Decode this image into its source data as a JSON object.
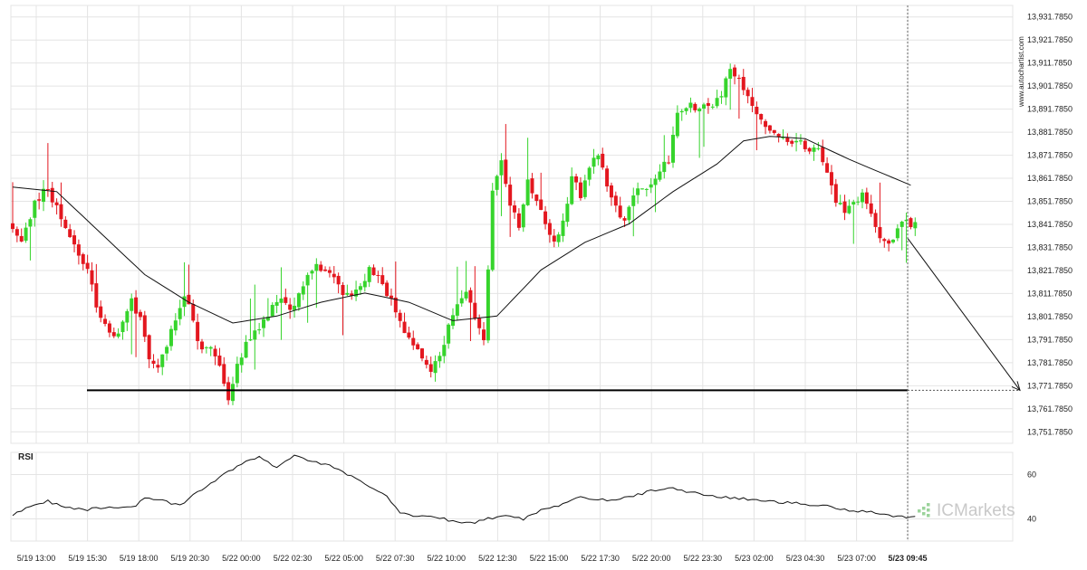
{
  "chart_data": {
    "type": "candlestick",
    "price_axis": {
      "range": [
        13746.785,
        13936.785
      ],
      "tick_values": [
        13931.785,
        13921.785,
        13911.785,
        13901.785,
        13891.785,
        13881.785,
        13871.785,
        13861.785,
        13851.785,
        13841.785,
        13831.785,
        13821.785,
        13811.785,
        13801.785,
        13791.785,
        13781.785,
        13771.785,
        13761.785,
        13751.785
      ],
      "tick_labels": [
        "13,931.7850",
        "13,921.7850",
        "13,911.7850",
        "13,901.7850",
        "13,891.7850",
        "13,881.7850",
        "13,871.7850",
        "13,861.7850",
        "13,851.7850",
        "13,841.7850",
        "13,831.7850",
        "13,821.7850",
        "13,811.7850",
        "13,801.7850",
        "13,791.7850",
        "13,781.7850",
        "13,771.7850",
        "13,761.7850",
        "13,751.7850"
      ]
    },
    "x_axis": {
      "tick_labels": [
        "5/19 13:00",
        "5/19 15:30",
        "5/19 18:00",
        "5/19 20:30",
        "5/22 00:00",
        "5/22 02:30",
        "5/22 05:00",
        "5/22 07:30",
        "5/22 10:00",
        "5/22 12:30",
        "5/22 15:00",
        "5/22 17:30",
        "5/22 20:00",
        "5/22 23:30",
        "5/23 02:00",
        "5/23 04:30",
        "5/23 07:00",
        "5/23 09:45"
      ],
      "current_label": "5/23 09:45"
    },
    "support_level": 13769.785,
    "projection": {
      "from_price": 13835.785,
      "to_price": 13769.785
    },
    "price_anchors": [
      [
        0,
        13843
      ],
      [
        3,
        13834
      ],
      [
        6,
        13852
      ],
      [
        9,
        13858
      ],
      [
        12,
        13844
      ],
      [
        15,
        13832
      ],
      [
        18,
        13823
      ],
      [
        20,
        13806
      ],
      [
        22,
        13798
      ],
      [
        24,
        13792
      ],
      [
        26,
        13800
      ],
      [
        28,
        13810
      ],
      [
        30,
        13800
      ],
      [
        32,
        13784
      ],
      [
        34,
        13778
      ],
      [
        36,
        13790
      ],
      [
        38,
        13800
      ],
      [
        40,
        13812
      ],
      [
        42,
        13800
      ],
      [
        44,
        13786
      ],
      [
        46,
        13790
      ],
      [
        48,
        13779
      ],
      [
        50,
        13765
      ],
      [
        52,
        13781
      ],
      [
        54,
        13790
      ],
      [
        56,
        13796
      ],
      [
        58,
        13800
      ],
      [
        60,
        13806
      ],
      [
        62,
        13808
      ],
      [
        64,
        13805
      ],
      [
        66,
        13810
      ],
      [
        68,
        13818
      ],
      [
        70,
        13824
      ],
      [
        72,
        13822
      ],
      [
        74,
        13818
      ],
      [
        76,
        13812
      ],
      [
        78,
        13810
      ],
      [
        80,
        13815
      ],
      [
        82,
        13822
      ],
      [
        84,
        13818
      ],
      [
        86,
        13812
      ],
      [
        88,
        13805
      ],
      [
        90,
        13794
      ],
      [
        92,
        13788
      ],
      [
        94,
        13784
      ],
      [
        96,
        13777
      ],
      [
        98,
        13784
      ],
      [
        100,
        13797
      ],
      [
        102,
        13808
      ],
      [
        104,
        13812
      ],
      [
        106,
        13800
      ],
      [
        108,
        13792
      ],
      [
        110,
        13855
      ],
      [
        112,
        13870
      ],
      [
        114,
        13850
      ],
      [
        116,
        13842
      ],
      [
        118,
        13860
      ],
      [
        120,
        13852
      ],
      [
        122,
        13842
      ],
      [
        124,
        13835
      ],
      [
        126,
        13842
      ],
      [
        128,
        13862
      ],
      [
        130,
        13855
      ],
      [
        132,
        13868
      ],
      [
        134,
        13872
      ],
      [
        136,
        13858
      ],
      [
        138,
        13848
      ],
      [
        140,
        13843
      ],
      [
        142,
        13855
      ],
      [
        144,
        13858
      ],
      [
        146,
        13860
      ],
      [
        148,
        13864
      ],
      [
        150,
        13870
      ],
      [
        152,
        13890
      ],
      [
        154,
        13894
      ],
      [
        156,
        13892
      ],
      [
        158,
        13895
      ],
      [
        160,
        13893
      ],
      [
        162,
        13898
      ],
      [
        164,
        13910
      ],
      [
        166,
        13906
      ],
      [
        168,
        13898
      ],
      [
        170,
        13890
      ],
      [
        172,
        13884
      ],
      [
        174,
        13882
      ],
      [
        176,
        13880
      ],
      [
        178,
        13876
      ],
      [
        180,
        13877
      ],
      [
        182,
        13874
      ],
      [
        184,
        13874
      ],
      [
        186,
        13866
      ],
      [
        188,
        13852
      ],
      [
        190,
        13848
      ],
      [
        192,
        13852
      ],
      [
        194,
        13854
      ],
      [
        196,
        13845
      ],
      [
        198,
        13836
      ],
      [
        200,
        13832
      ],
      [
        202,
        13840
      ],
      [
        204,
        13842
      ],
      [
        205,
        13842
      ]
    ],
    "ma_anchors": [
      [
        0,
        13858
      ],
      [
        10,
        13856
      ],
      [
        20,
        13838
      ],
      [
        30,
        13820
      ],
      [
        40,
        13808
      ],
      [
        50,
        13799
      ],
      [
        60,
        13802
      ],
      [
        70,
        13808
      ],
      [
        80,
        13812
      ],
      [
        90,
        13808
      ],
      [
        100,
        13800
      ],
      [
        110,
        13802
      ],
      [
        120,
        13822
      ],
      [
        130,
        13834
      ],
      [
        140,
        13842
      ],
      [
        150,
        13856
      ],
      [
        160,
        13868
      ],
      [
        166,
        13878
      ],
      [
        172,
        13880
      ],
      [
        180,
        13879
      ],
      [
        190,
        13870
      ],
      [
        200,
        13862
      ],
      [
        205,
        13858
      ]
    ],
    "rsi": {
      "label": "RSI",
      "range": [
        30,
        70
      ],
      "tick_values": [
        60,
        40
      ],
      "tick_labels": [
        "60",
        "40"
      ],
      "anchors": [
        [
          0,
          42
        ],
        [
          4,
          46
        ],
        [
          8,
          48
        ],
        [
          12,
          45
        ],
        [
          16,
          44
        ],
        [
          20,
          45
        ],
        [
          24,
          45
        ],
        [
          28,
          46
        ],
        [
          30,
          50
        ],
        [
          34,
          48
        ],
        [
          38,
          46
        ],
        [
          42,
          52
        ],
        [
          48,
          60
        ],
        [
          52,
          65
        ],
        [
          56,
          68
        ],
        [
          60,
          63
        ],
        [
          64,
          69
        ],
        [
          68,
          66
        ],
        [
          72,
          64
        ],
        [
          76,
          60
        ],
        [
          80,
          56
        ],
        [
          84,
          52
        ],
        [
          88,
          43
        ],
        [
          92,
          41
        ],
        [
          96,
          41
        ],
        [
          100,
          39
        ],
        [
          104,
          38
        ],
        [
          108,
          40
        ],
        [
          112,
          42
        ],
        [
          116,
          40
        ],
        [
          120,
          44
        ],
        [
          124,
          46
        ],
        [
          128,
          50
        ],
        [
          132,
          49
        ],
        [
          136,
          48
        ],
        [
          140,
          50
        ],
        [
          146,
          53
        ],
        [
          150,
          54
        ],
        [
          154,
          52
        ],
        [
          160,
          50
        ],
        [
          166,
          49
        ],
        [
          172,
          48
        ],
        [
          178,
          47
        ],
        [
          184,
          46
        ],
        [
          190,
          44
        ],
        [
          196,
          43
        ],
        [
          200,
          41
        ],
        [
          205,
          41
        ]
      ]
    }
  },
  "watermark": {
    "side_text": "www.autochartist.com",
    "brand_prefix": "IC",
    "brand_suffix": "Markets"
  },
  "colors": {
    "bull": "#36d42c",
    "bear": "#e3171f",
    "ma": "#111111",
    "rsi": "#111111",
    "support": "#000000",
    "projection": "#111111",
    "grid": "#e4e4e4",
    "brand_dots": "#9bd39b"
  }
}
